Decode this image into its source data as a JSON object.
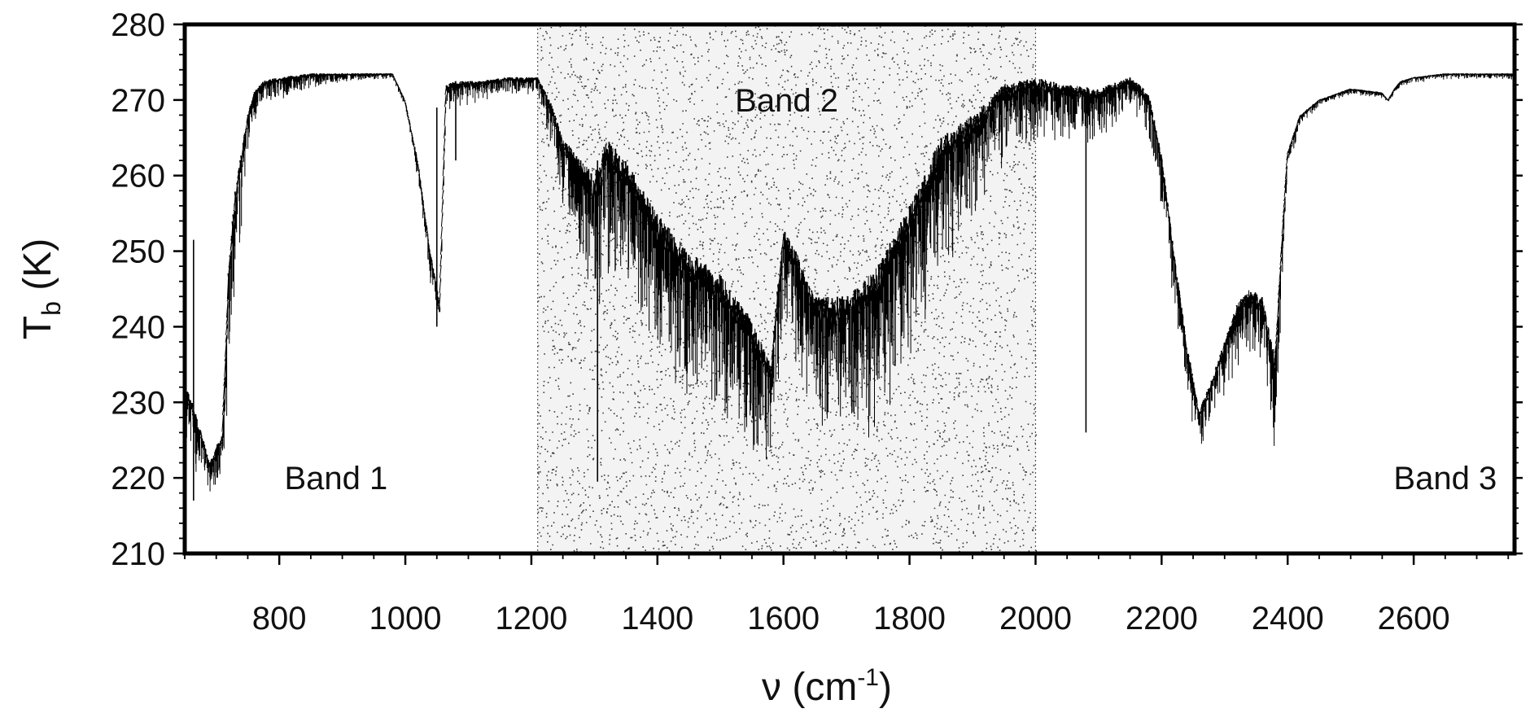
{
  "chart_data": {
    "type": "line",
    "title": "",
    "xlabel": {
      "main": "ν  (cm",
      "sup": "-1",
      "close": ")"
    },
    "ylabel": {
      "main": "T",
      "sub": "b",
      "rest": "  (K)"
    },
    "xlim": [
      650,
      2760
    ],
    "ylim": [
      210,
      280
    ],
    "x_ticks": [
      800,
      1000,
      1200,
      1400,
      1600,
      1800,
      2000,
      2200,
      2400,
      2600
    ],
    "y_ticks": [
      210,
      220,
      230,
      240,
      250,
      260,
      270,
      280
    ],
    "grid": false,
    "shaded_region": {
      "x": [
        1210,
        2000
      ],
      "pattern": "stipple"
    },
    "annotations": [
      {
        "text": "Band 1",
        "x": 890,
        "y": 220
      },
      {
        "text": "Band 2",
        "x": 1605,
        "y": 270
      },
      {
        "text": "Band 3",
        "x": 2650,
        "y": 220
      }
    ],
    "series": [
      {
        "line_color": "#000000",
        "envelope": {
          "x": [
            650,
            670,
            690,
            710,
            720,
            730,
            740,
            750,
            760,
            775,
            800,
            850,
            900,
            950,
            980,
            1000,
            1020,
            1040,
            1055,
            1065,
            1080,
            1120,
            1160,
            1210,
            1230,
            1250,
            1280,
            1300,
            1320,
            1350,
            1400,
            1450,
            1500,
            1550,
            1580,
            1600,
            1620,
            1650,
            1700,
            1750,
            1800,
            1850,
            1900,
            1950,
            2000,
            2050,
            2100,
            2150,
            2180,
            2200,
            2220,
            2240,
            2260,
            2280,
            2300,
            2320,
            2340,
            2360,
            2380,
            2390,
            2400,
            2420,
            2450,
            2500,
            2550,
            2560,
            2570,
            2580,
            2600,
            2650,
            2700,
            2760
          ],
          "upper": [
            233,
            228,
            222,
            226,
            248,
            258,
            263,
            268,
            271,
            272.5,
            273,
            273.5,
            273.5,
            273.5,
            273.5,
            270,
            262,
            250,
            243,
            272,
            272.5,
            272.5,
            273,
            273,
            270,
            265,
            262,
            260,
            265,
            262,
            255,
            250,
            247,
            241,
            235,
            253,
            250,
            244,
            244,
            248,
            256,
            265,
            268,
            272,
            273,
            272,
            271.5,
            273,
            271,
            263,
            250,
            238,
            229,
            233,
            238,
            243,
            245,
            244,
            236,
            250,
            263,
            268,
            270,
            271.5,
            271,
            270,
            271.5,
            272.5,
            273,
            273.5,
            273.5,
            273.5
          ],
          "lower": [
            218,
            217,
            217,
            218,
            228,
            240,
            246,
            262,
            266,
            268,
            269,
            271,
            272,
            272.5,
            272.5,
            268,
            258,
            244,
            240,
            266,
            268,
            269,
            270,
            270,
            262,
            252,
            245,
            235,
            240,
            238,
            230,
            224,
            222,
            218,
            218,
            236,
            230,
            222,
            218,
            220,
            228,
            240,
            248,
            258,
            262,
            262,
            262,
            268,
            262,
            254,
            240,
            228,
            221,
            224,
            228,
            232,
            234,
            233,
            219,
            240,
            260,
            266,
            269,
            270.5,
            270,
            269.5,
            270.5,
            271.5,
            272,
            272.5,
            272.5,
            272.5
          ]
        },
        "lines": [
          {
            "x": 664,
            "low": 217,
            "high": 251.5
          },
          {
            "x": 1050,
            "low": 240,
            "high": 269
          },
          {
            "x": 1080,
            "low": 262,
            "high": 272.5
          },
          {
            "x": 1305,
            "low": 219.5,
            "high": 262
          },
          {
            "x": 2080,
            "low": 226,
            "high": 270
          }
        ]
      }
    ]
  }
}
